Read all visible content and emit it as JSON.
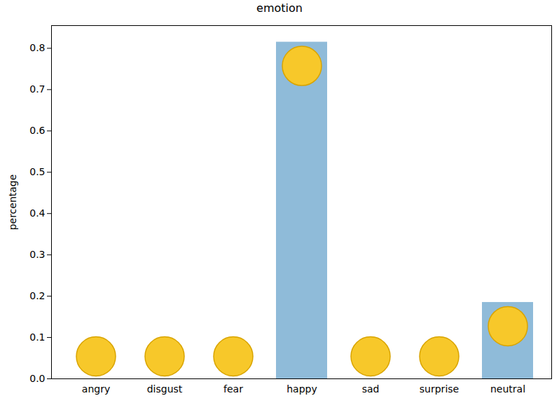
{
  "chart_data": {
    "type": "bar",
    "title": "emotion",
    "y_label": "percentage",
    "categories": [
      "angry",
      "disgust",
      "fear",
      "happy",
      "sad",
      "surprise",
      "neutral"
    ],
    "values": [
      0.0,
      0.0,
      0.0,
      0.815,
      0.0,
      0.0,
      0.185
    ],
    "color": "#8fbbd9",
    "ylim": [
      0,
      0.855
    ],
    "yticks": [
      {
        "value": 0,
        "label": "0.0"
      },
      0.1,
      0.2,
      0.3,
      0.4,
      0.5,
      0.6,
      0.7,
      0.8
    ],
    "grid": false
  }
}
